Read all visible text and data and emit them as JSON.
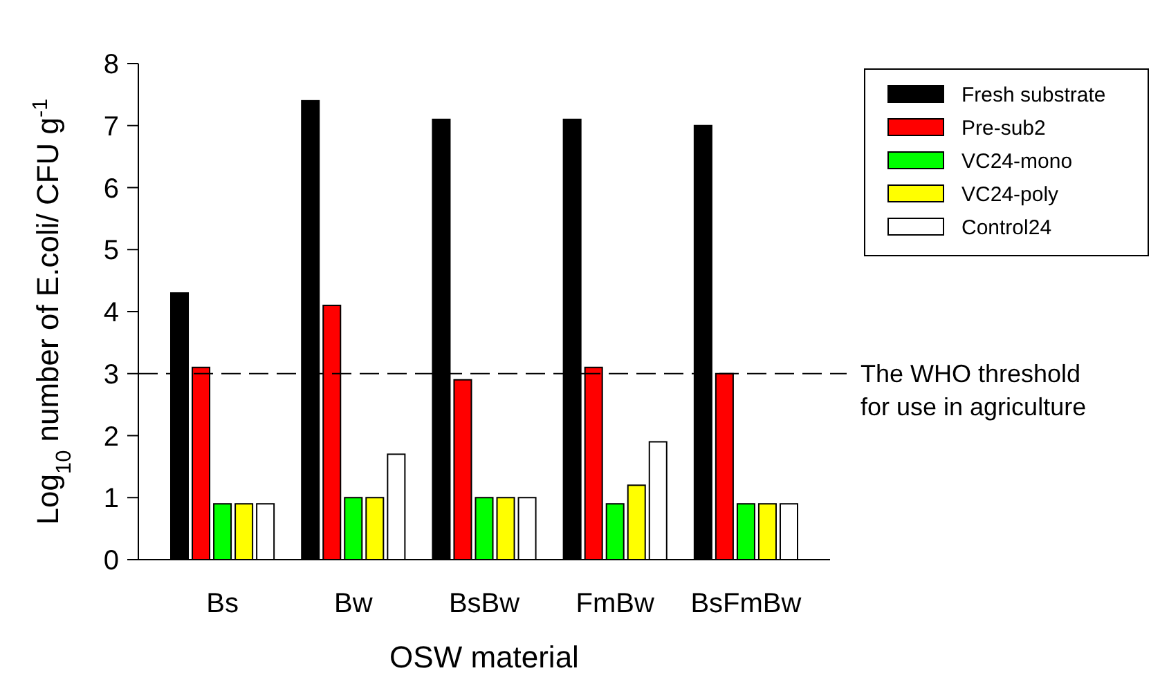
{
  "chart_data": {
    "type": "bar",
    "xlabel": "OSW material",
    "ylabel": "Log$_{10}$ number of E.coli/ CFU g$^{-1}$",
    "categories": [
      "Bs",
      "Bw",
      "BsBw",
      "FmBw",
      "BsFmBw"
    ],
    "series": [
      {
        "name": "Fresh substrate",
        "color": "#000000",
        "values": [
          4.3,
          7.4,
          7.1,
          7.1,
          7.0
        ]
      },
      {
        "name": "Pre-sub2",
        "color": "#ff0000",
        "values": [
          3.1,
          4.1,
          2.9,
          3.1,
          3.0
        ]
      },
      {
        "name": "VC24-mono",
        "color": "#00ff00",
        "values": [
          0.9,
          1.0,
          1.0,
          0.9,
          0.9
        ]
      },
      {
        "name": "VC24-poly",
        "color": "#ffff00",
        "values": [
          0.9,
          1.0,
          1.0,
          1.2,
          0.9
        ]
      },
      {
        "name": "Control24",
        "color": "#ffffff",
        "values": [
          0.9,
          1.7,
          1.0,
          1.9,
          0.9
        ]
      }
    ],
    "ylim": [
      0,
      8
    ],
    "yticks": [
      0,
      1,
      2,
      3,
      4,
      5,
      6,
      7,
      8
    ],
    "ref_lines": [
      {
        "axis": "y",
        "value": 3,
        "label": "The WHO threshold for use in agriculture",
        "line_style": "dashed",
        "color": "#000000"
      }
    ],
    "legend": "top right",
    "grid": false
  }
}
